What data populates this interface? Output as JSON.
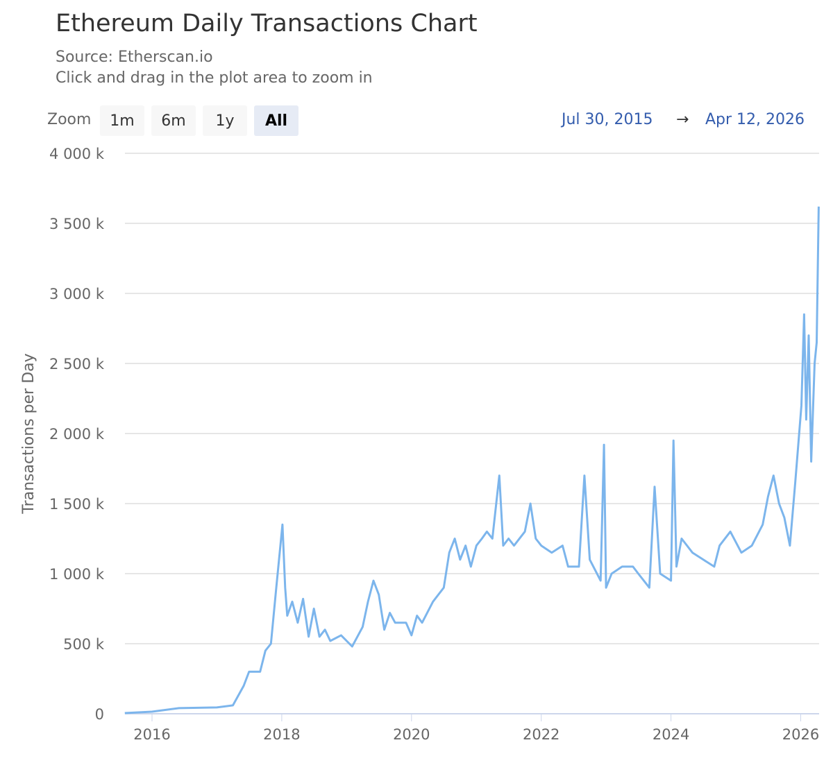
{
  "title": "Ethereum Daily Transactions Chart",
  "subtitle": "Source: Etherscan.io",
  "hint": "Click and drag in the plot area to zoom in",
  "zoom": {
    "label": "Zoom",
    "buttons": [
      "1m",
      "6m",
      "1y",
      "All"
    ],
    "selected": "All"
  },
  "range": {
    "from": "Jul 30, 2015",
    "arrow": "→",
    "to": "Apr 12, 2026"
  },
  "chart_data": {
    "type": "line",
    "title": "Ethereum Daily Transactions Chart",
    "ylabel": "Transactions per Day",
    "xlabel": "",
    "ylim": [
      0,
      4000000
    ],
    "xlim": [
      "2015-07-30",
      "2026-04-12"
    ],
    "y_ticks": [
      "0",
      "500 k",
      "1 000 k",
      "1 500 k",
      "2 000 k",
      "2 500 k",
      "3 000 k",
      "3 500 k",
      "4 000 k"
    ],
    "x_ticks": [
      "2016",
      "2018",
      "2020",
      "2022",
      "2024",
      "2026"
    ],
    "grid": true,
    "color": "#7cb5ec",
    "series": [
      {
        "points": [
          [
            "2015-08-01",
            5000
          ],
          [
            "2016-01-01",
            15000
          ],
          [
            "2016-06-01",
            40000
          ],
          [
            "2017-01-01",
            45000
          ],
          [
            "2017-04-01",
            60000
          ],
          [
            "2017-06-01",
            200000
          ],
          [
            "2017-07-01",
            300000
          ],
          [
            "2017-09-01",
            300000
          ],
          [
            "2017-10-01",
            450000
          ],
          [
            "2017-11-01",
            500000
          ],
          [
            "2017-12-01",
            900000
          ],
          [
            "2018-01-05",
            1350000
          ],
          [
            "2018-01-20",
            900000
          ],
          [
            "2018-02-01",
            700000
          ],
          [
            "2018-03-01",
            800000
          ],
          [
            "2018-04-01",
            650000
          ],
          [
            "2018-05-01",
            820000
          ],
          [
            "2018-06-01",
            550000
          ],
          [
            "2018-07-01",
            750000
          ],
          [
            "2018-08-01",
            550000
          ],
          [
            "2018-09-01",
            600000
          ],
          [
            "2018-10-01",
            520000
          ],
          [
            "2018-12-01",
            560000
          ],
          [
            "2019-02-01",
            480000
          ],
          [
            "2019-04-01",
            620000
          ],
          [
            "2019-05-01",
            800000
          ],
          [
            "2019-06-01",
            950000
          ],
          [
            "2019-07-01",
            850000
          ],
          [
            "2019-08-01",
            600000
          ],
          [
            "2019-09-01",
            720000
          ],
          [
            "2019-10-01",
            650000
          ],
          [
            "2019-12-01",
            650000
          ],
          [
            "2020-01-01",
            560000
          ],
          [
            "2020-02-01",
            700000
          ],
          [
            "2020-03-01",
            650000
          ],
          [
            "2020-05-01",
            800000
          ],
          [
            "2020-07-01",
            900000
          ],
          [
            "2020-08-01",
            1150000
          ],
          [
            "2020-09-01",
            1250000
          ],
          [
            "2020-10-01",
            1100000
          ],
          [
            "2020-11-01",
            1200000
          ],
          [
            "2020-12-01",
            1050000
          ],
          [
            "2021-01-01",
            1200000
          ],
          [
            "2021-02-01",
            1250000
          ],
          [
            "2021-03-01",
            1300000
          ],
          [
            "2021-04-01",
            1250000
          ],
          [
            "2021-05-10",
            1700000
          ],
          [
            "2021-06-01",
            1200000
          ],
          [
            "2021-07-01",
            1250000
          ],
          [
            "2021-08-01",
            1200000
          ],
          [
            "2021-10-01",
            1300000
          ],
          [
            "2021-11-01",
            1500000
          ],
          [
            "2021-12-01",
            1250000
          ],
          [
            "2022-01-01",
            1200000
          ],
          [
            "2022-03-01",
            1150000
          ],
          [
            "2022-05-01",
            1200000
          ],
          [
            "2022-06-01",
            1050000
          ],
          [
            "2022-08-01",
            1050000
          ],
          [
            "2022-09-01",
            1700000
          ],
          [
            "2022-10-01",
            1100000
          ],
          [
            "2022-12-01",
            950000
          ],
          [
            "2022-12-20",
            1920000
          ],
          [
            "2023-01-01",
            900000
          ],
          [
            "2023-02-01",
            1000000
          ],
          [
            "2023-04-01",
            1050000
          ],
          [
            "2023-06-01",
            1050000
          ],
          [
            "2023-07-01",
            1000000
          ],
          [
            "2023-09-01",
            900000
          ],
          [
            "2023-10-01",
            1620000
          ],
          [
            "2023-11-01",
            1000000
          ],
          [
            "2024-01-01",
            950000
          ],
          [
            "2024-01-15",
            1950000
          ],
          [
            "2024-02-01",
            1050000
          ],
          [
            "2024-03-01",
            1250000
          ],
          [
            "2024-05-01",
            1150000
          ],
          [
            "2024-07-01",
            1100000
          ],
          [
            "2024-09-01",
            1050000
          ],
          [
            "2024-10-01",
            1200000
          ],
          [
            "2024-12-01",
            1300000
          ],
          [
            "2025-02-01",
            1150000
          ],
          [
            "2025-04-01",
            1200000
          ],
          [
            "2025-06-01",
            1350000
          ],
          [
            "2025-07-01",
            1550000
          ],
          [
            "2025-08-01",
            1700000
          ],
          [
            "2025-09-01",
            1500000
          ],
          [
            "2025-10-01",
            1400000
          ],
          [
            "2025-11-01",
            1200000
          ],
          [
            "2025-12-01",
            1650000
          ],
          [
            "2026-01-05",
            2200000
          ],
          [
            "2026-01-20",
            2850000
          ],
          [
            "2026-02-01",
            2100000
          ],
          [
            "2026-02-15",
            2700000
          ],
          [
            "2026-03-01",
            1800000
          ],
          [
            "2026-03-20",
            2500000
          ],
          [
            "2026-04-01",
            2650000
          ],
          [
            "2026-04-12",
            3620000
          ]
        ]
      }
    ]
  }
}
